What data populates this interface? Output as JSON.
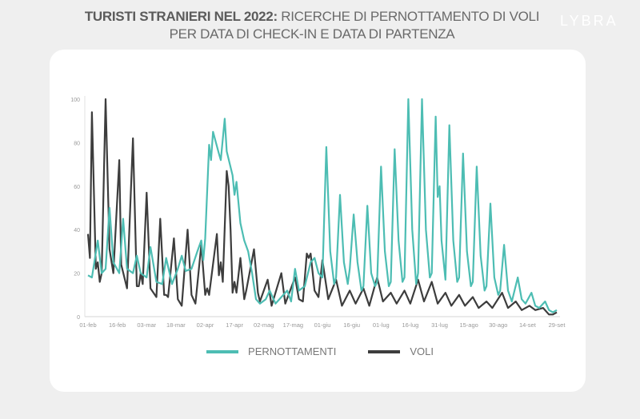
{
  "header": {
    "title_bold": "TURISTI STRANIERI NEL 2022:",
    "title_rest": " RICERCHE DI PERNOTTAMENTO DI VOLI",
    "title_line2": "PER DATA DI CHECK-IN E DATA DI PARTENZA",
    "logo": "LYBRA"
  },
  "chart_data": {
    "type": "line",
    "title": "TURISTI STRANIERI NEL 2022: RICERCHE DI PERNOTTAMENTO DI VOLI PER DATA DI CHECK-IN E DATA DI PARTENZA",
    "xlabel": "",
    "ylabel": "",
    "ylim": [
      0,
      100
    ],
    "yticks": [
      "0",
      "20",
      "40",
      "60",
      "80",
      "100"
    ],
    "xlim": [
      "2022-02-01",
      "2022-09-29"
    ],
    "xticks": [
      [
        "2022-02-01",
        "01-feb"
      ],
      [
        "2022-02-16",
        "16-feb"
      ],
      [
        "2022-03-03",
        "03-mar"
      ],
      [
        "2022-03-18",
        "18-mar"
      ],
      [
        "2022-04-02",
        "02-apr"
      ],
      [
        "2022-04-17",
        "17-apr"
      ],
      [
        "2022-05-02",
        "02-mag"
      ],
      [
        "2022-05-17",
        "17-mag"
      ],
      [
        "2022-06-01",
        "01-giu"
      ],
      [
        "2022-06-16",
        "16-giu"
      ],
      [
        "2022-07-01",
        "01-lug"
      ],
      [
        "2022-07-16",
        "16-lug"
      ],
      [
        "2022-07-31",
        "31-lug"
      ],
      [
        "2022-08-15",
        "15-ago"
      ],
      [
        "2022-08-30",
        "30-ago"
      ],
      [
        "2022-09-14",
        "14-set"
      ],
      [
        "2022-09-29",
        "29-set"
      ]
    ],
    "grid": false,
    "legend": "bottom",
    "series": [
      {
        "name": "PERNOTTAMENTI",
        "color": "#4dbdb3",
        "points": [
          [
            "02-01",
            19
          ],
          [
            "02-03",
            18
          ],
          [
            "02-06",
            35
          ],
          [
            "02-08",
            20
          ],
          [
            "02-10",
            22
          ],
          [
            "02-12",
            50
          ],
          [
            "02-14",
            25
          ],
          [
            "02-17",
            20
          ],
          [
            "02-19",
            45
          ],
          [
            "02-21",
            22
          ],
          [
            "02-24",
            20
          ],
          [
            "02-26",
            28
          ],
          [
            "02-28",
            20
          ],
          [
            "03-03",
            18
          ],
          [
            "03-05",
            32
          ],
          [
            "03-08",
            16
          ],
          [
            "03-11",
            15
          ],
          [
            "03-13",
            27
          ],
          [
            "03-16",
            15
          ],
          [
            "03-19",
            22
          ],
          [
            "03-21",
            28
          ],
          [
            "03-23",
            21
          ],
          [
            "03-26",
            22
          ],
          [
            "03-29",
            30
          ],
          [
            "03-31",
            35
          ],
          [
            "04-01",
            26
          ],
          [
            "04-02",
            36
          ],
          [
            "04-04",
            79
          ],
          [
            "04-05",
            72
          ],
          [
            "04-06",
            85
          ],
          [
            "04-09",
            75
          ],
          [
            "04-10",
            72
          ],
          [
            "04-12",
            91
          ],
          [
            "04-13",
            76
          ],
          [
            "04-16",
            65
          ],
          [
            "04-17",
            56
          ],
          [
            "04-18",
            62
          ],
          [
            "04-20",
            43
          ],
          [
            "04-22",
            35
          ],
          [
            "04-24",
            30
          ],
          [
            "04-26",
            20
          ],
          [
            "04-28",
            8
          ],
          [
            "04-30",
            6
          ],
          [
            "05-03",
            8
          ],
          [
            "05-05",
            12
          ],
          [
            "05-08",
            6
          ],
          [
            "05-11",
            9
          ],
          [
            "05-14",
            12
          ],
          [
            "05-16",
            7
          ],
          [
            "05-18",
            22
          ],
          [
            "05-20",
            12
          ],
          [
            "05-23",
            14
          ],
          [
            "05-26",
            25
          ],
          [
            "05-28",
            27
          ],
          [
            "05-30",
            20
          ],
          [
            "06-01",
            18
          ],
          [
            "06-03",
            78
          ],
          [
            "06-05",
            30
          ],
          [
            "06-07",
            15
          ],
          [
            "06-08",
            18
          ],
          [
            "06-10",
            56
          ],
          [
            "06-12",
            25
          ],
          [
            "06-14",
            15
          ],
          [
            "06-15",
            22
          ],
          [
            "06-17",
            47
          ],
          [
            "06-19",
            25
          ],
          [
            "06-21",
            12
          ],
          [
            "06-22",
            14
          ],
          [
            "06-24",
            51
          ],
          [
            "06-26",
            20
          ],
          [
            "06-28",
            14
          ],
          [
            "06-29",
            16
          ],
          [
            "07-01",
            69
          ],
          [
            "07-03",
            30
          ],
          [
            "07-05",
            14
          ],
          [
            "07-06",
            16
          ],
          [
            "07-08",
            77
          ],
          [
            "07-10",
            35
          ],
          [
            "07-12",
            16
          ],
          [
            "07-13",
            18
          ],
          [
            "07-15",
            100
          ],
          [
            "07-17",
            40
          ],
          [
            "07-19",
            15
          ],
          [
            "07-20",
            20
          ],
          [
            "07-22",
            100
          ],
          [
            "07-24",
            40
          ],
          [
            "07-26",
            18
          ],
          [
            "07-27",
            20
          ],
          [
            "07-29",
            92
          ],
          [
            "07-30",
            55
          ],
          [
            "07-31",
            60
          ],
          [
            "08-01",
            35
          ],
          [
            "08-03",
            17
          ],
          [
            "08-05",
            88
          ],
          [
            "08-07",
            35
          ],
          [
            "08-09",
            16
          ],
          [
            "08-10",
            18
          ],
          [
            "08-12",
            75
          ],
          [
            "08-14",
            30
          ],
          [
            "08-16",
            14
          ],
          [
            "08-17",
            16
          ],
          [
            "08-19",
            69
          ],
          [
            "08-21",
            28
          ],
          [
            "08-23",
            12
          ],
          [
            "08-24",
            14
          ],
          [
            "08-26",
            52
          ],
          [
            "08-28",
            18
          ],
          [
            "08-30",
            10
          ],
          [
            "08-31",
            12
          ],
          [
            "09-02",
            33
          ],
          [
            "09-04",
            12
          ],
          [
            "09-06",
            7
          ],
          [
            "09-09",
            18
          ],
          [
            "09-11",
            8
          ],
          [
            "09-13",
            6
          ],
          [
            "09-16",
            11
          ],
          [
            "09-18",
            5
          ],
          [
            "09-20",
            4
          ],
          [
            "09-23",
            7
          ],
          [
            "09-25",
            3
          ],
          [
            "09-27",
            2
          ],
          [
            "09-29",
            3
          ]
        ]
      },
      {
        "name": "VOLI",
        "color": "#3d3d3d",
        "points": [
          [
            "02-01",
            38
          ],
          [
            "02-02",
            27
          ],
          [
            "02-03",
            94
          ],
          [
            "02-05",
            22
          ],
          [
            "02-06",
            25
          ],
          [
            "02-07",
            16
          ],
          [
            "02-08",
            20
          ],
          [
            "02-10",
            100
          ],
          [
            "02-12",
            31
          ],
          [
            "02-14",
            20
          ],
          [
            "02-17",
            72
          ],
          [
            "02-18",
            24
          ],
          [
            "02-21",
            13
          ],
          [
            "02-24",
            82
          ],
          [
            "02-26",
            14
          ],
          [
            "02-27",
            14
          ],
          [
            "02-28",
            20
          ],
          [
            "03-01",
            15
          ],
          [
            "03-03",
            57
          ],
          [
            "03-05",
            13
          ],
          [
            "03-08",
            9
          ],
          [
            "03-10",
            45
          ],
          [
            "03-12",
            10
          ],
          [
            "03-13",
            10
          ],
          [
            "03-14",
            9
          ],
          [
            "03-17",
            36
          ],
          [
            "03-19",
            8
          ],
          [
            "03-21",
            5
          ],
          [
            "03-24",
            40
          ],
          [
            "03-26",
            10
          ],
          [
            "03-28",
            6
          ],
          [
            "03-31",
            33
          ],
          [
            "04-02",
            10
          ],
          [
            "04-03",
            13
          ],
          [
            "04-04",
            10
          ],
          [
            "04-08",
            38
          ],
          [
            "04-09",
            19
          ],
          [
            "04-10",
            25
          ],
          [
            "04-11",
            16
          ],
          [
            "04-13",
            67
          ],
          [
            "04-14",
            60
          ],
          [
            "04-15",
            40
          ],
          [
            "04-16",
            11
          ],
          [
            "04-17",
            16
          ],
          [
            "04-18",
            11
          ],
          [
            "04-20",
            27
          ],
          [
            "04-22",
            8
          ],
          [
            "04-23",
            12
          ],
          [
            "04-27",
            31
          ],
          [
            "04-29",
            11
          ],
          [
            "04-30",
            7
          ],
          [
            "05-04",
            17
          ],
          [
            "05-06",
            5
          ],
          [
            "05-11",
            20
          ],
          [
            "05-13",
            6
          ],
          [
            "05-18",
            18
          ],
          [
            "05-20",
            8
          ],
          [
            "05-22",
            7
          ],
          [
            "05-24",
            29
          ],
          [
            "05-25",
            27
          ],
          [
            "05-26",
            29
          ],
          [
            "05-28",
            12
          ],
          [
            "05-30",
            9
          ],
          [
            "06-01",
            26
          ],
          [
            "06-04",
            8
          ],
          [
            "06-08",
            17
          ],
          [
            "06-11",
            5
          ],
          [
            "06-15",
            12
          ],
          [
            "06-18",
            6
          ],
          [
            "06-22",
            13
          ],
          [
            "06-25",
            5
          ],
          [
            "06-29",
            18
          ],
          [
            "07-02",
            7
          ],
          [
            "07-06",
            11
          ],
          [
            "07-09",
            6
          ],
          [
            "07-13",
            12
          ],
          [
            "07-16",
            6
          ],
          [
            "07-20",
            17
          ],
          [
            "07-23",
            7
          ],
          [
            "07-27",
            16
          ],
          [
            "07-30",
            6
          ],
          [
            "08-03",
            11
          ],
          [
            "08-06",
            5
          ],
          [
            "08-10",
            10
          ],
          [
            "08-13",
            5
          ],
          [
            "08-17",
            9
          ],
          [
            "08-20",
            4
          ],
          [
            "08-24",
            7
          ],
          [
            "08-27",
            4
          ],
          [
            "09-01",
            11
          ],
          [
            "09-04",
            4
          ],
          [
            "09-08",
            7
          ],
          [
            "09-11",
            3
          ],
          [
            "09-15",
            5
          ],
          [
            "09-18",
            3
          ],
          [
            "09-22",
            4
          ],
          [
            "09-25",
            1
          ],
          [
            "09-27",
            1
          ],
          [
            "09-29",
            2
          ]
        ]
      }
    ]
  }
}
